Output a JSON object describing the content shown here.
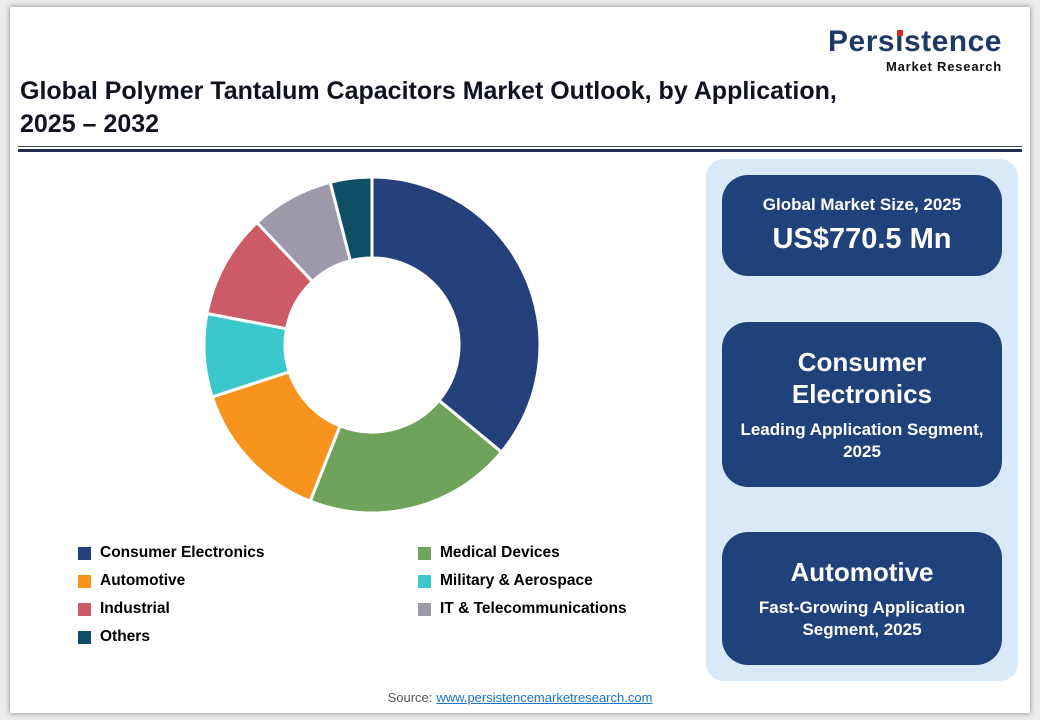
{
  "logo": {
    "name_pre": "Pers",
    "name_dotless_i": "ı",
    "name_post": "stence",
    "subtitle": "Market Research"
  },
  "header": {
    "title_line1": "Global Polymer Tantalum Capacitors Market Outlook, by Application,",
    "title_line2": "2025 – 2032"
  },
  "chart_data": {
    "type": "pie",
    "donut": true,
    "title": "Global Polymer Tantalum Capacitors Market Outlook, by Application, 2025 – 2032",
    "start_angle_deg": 0,
    "direction": "clockwise",
    "center_hole_ratio": 0.52,
    "legend_position": "bottom",
    "values_unit": "percent (estimated from slice geometry; no numeric labels shown)",
    "segments": [
      {
        "label": "Consumer Electronics",
        "value": 36,
        "color": "#24417C"
      },
      {
        "label": "Medical Devices",
        "value": 20,
        "color": "#6FA35C"
      },
      {
        "label": "Automotive",
        "value": 14,
        "color": "#F7941E"
      },
      {
        "label": "Military & Aerospace",
        "value": 8,
        "color": "#3BC7CB"
      },
      {
        "label": "Industrial",
        "value": 10,
        "color": "#CD5B67"
      },
      {
        "label": "IT & Telecommunications",
        "value": 8,
        "color": "#9D99AB"
      },
      {
        "label": "Others",
        "value": 4,
        "color": "#0F4E64"
      }
    ]
  },
  "panel": {
    "cards": [
      {
        "heading": "Global Market Size, 2025",
        "value": "US$770.5 Mn"
      },
      {
        "heading": "Consumer Electronics",
        "subheading": "Leading Application Segment, 2025"
      },
      {
        "heading": "Automotive",
        "subheading": "Fast-Growing Application Segment, 2025"
      }
    ]
  },
  "footer": {
    "source_label": "Source:",
    "source_link_text": "www.persistencemarketresearch.com"
  }
}
